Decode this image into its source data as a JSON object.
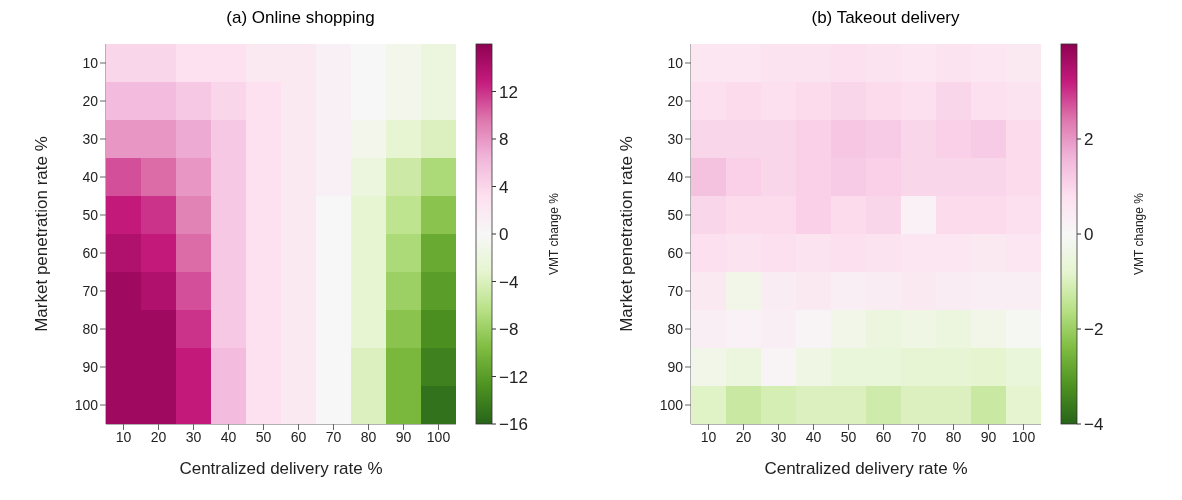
{
  "chart_data": [
    {
      "type": "heatmap",
      "title": "(a) Online shopping",
      "xlabel": "Centralized delivery rate %",
      "ylabel": "Market penetration rate %",
      "clabel": "VMT change %",
      "categories": [
        "10",
        "20",
        "30",
        "40",
        "50",
        "60",
        "70",
        "80",
        "90",
        "100"
      ],
      "y_categories": [
        "10",
        "20",
        "30",
        "40",
        "50",
        "60",
        "70",
        "80",
        "90",
        "100"
      ],
      "clim": [
        -16,
        16
      ],
      "cticks": [
        -16,
        -12,
        -8,
        -4,
        0,
        4,
        8,
        12
      ],
      "cells": [
        [
          4,
          4,
          3,
          3,
          2,
          2,
          1,
          0,
          -1,
          -2
        ],
        [
          6,
          6,
          5,
          4,
          3,
          2,
          1,
          0,
          -1,
          -2
        ],
        [
          8,
          8,
          7,
          5,
          3,
          2,
          1,
          -1,
          -3,
          -4
        ],
        [
          11,
          10,
          8,
          5,
          3,
          2,
          1,
          -2,
          -5,
          -7
        ],
        [
          13,
          12,
          9,
          5,
          3,
          2,
          0,
          -3,
          -6,
          -9
        ],
        [
          14,
          13,
          10,
          5,
          3,
          2,
          0,
          -3,
          -7,
          -11
        ],
        [
          15,
          14,
          11,
          5,
          3,
          2,
          0,
          -3,
          -8,
          -12
        ],
        [
          15,
          15,
          12,
          5,
          3,
          2,
          0,
          -3,
          -9,
          -13
        ],
        [
          15,
          15,
          13,
          6,
          3,
          2,
          0,
          -4,
          -10,
          -14
        ],
        [
          15,
          15,
          13,
          6,
          3,
          2,
          0,
          -4,
          -10,
          -15
        ]
      ]
    },
    {
      "type": "heatmap",
      "title": "(b) Takeout delivery",
      "xlabel": "Centralized delivery rate %",
      "ylabel": "Market penetration rate %",
      "clabel": "VMT change %",
      "categories": [
        "10",
        "20",
        "30",
        "40",
        "50",
        "60",
        "70",
        "80",
        "90",
        "100"
      ],
      "y_categories": [
        "10",
        "20",
        "30",
        "40",
        "50",
        "60",
        "70",
        "80",
        "90",
        "100"
      ],
      "clim": [
        -4,
        4
      ],
      "cticks": [
        -4,
        -2,
        0,
        2
      ],
      "cells": [
        [
          0.6,
          0.6,
          0.7,
          0.7,
          0.8,
          0.7,
          0.6,
          0.7,
          0.6,
          0.5
        ],
        [
          0.8,
          0.9,
          0.8,
          0.9,
          1.0,
          0.9,
          0.8,
          1.0,
          0.8,
          0.7
        ],
        [
          1.0,
          1.0,
          1.0,
          1.1,
          1.3,
          1.2,
          1.0,
          1.1,
          1.2,
          0.9
        ],
        [
          1.4,
          1.1,
          1.0,
          1.1,
          1.2,
          1.1,
          1.0,
          1.0,
          1.0,
          0.9
        ],
        [
          1.0,
          0.9,
          0.9,
          1.1,
          0.9,
          1.0,
          0.2,
          0.9,
          0.9,
          0.8
        ],
        [
          0.8,
          0.7,
          0.8,
          0.7,
          0.8,
          0.7,
          0.6,
          0.6,
          0.5,
          0.6
        ],
        [
          0.5,
          -0.3,
          0.4,
          0.5,
          0.3,
          0.4,
          0.5,
          0.4,
          0.3,
          0.3
        ],
        [
          0.3,
          0.2,
          0.3,
          0.1,
          -0.3,
          -0.5,
          -0.4,
          -0.5,
          -0.3,
          -0.1
        ],
        [
          -0.3,
          -0.5,
          0.1,
          -0.4,
          -0.6,
          -0.6,
          -0.7,
          -0.7,
          -0.8,
          -0.6
        ],
        [
          -0.9,
          -1.3,
          -1.1,
          -1.0,
          -1.0,
          -1.2,
          -1.0,
          -1.0,
          -1.3,
          -0.8
        ]
      ]
    }
  ]
}
